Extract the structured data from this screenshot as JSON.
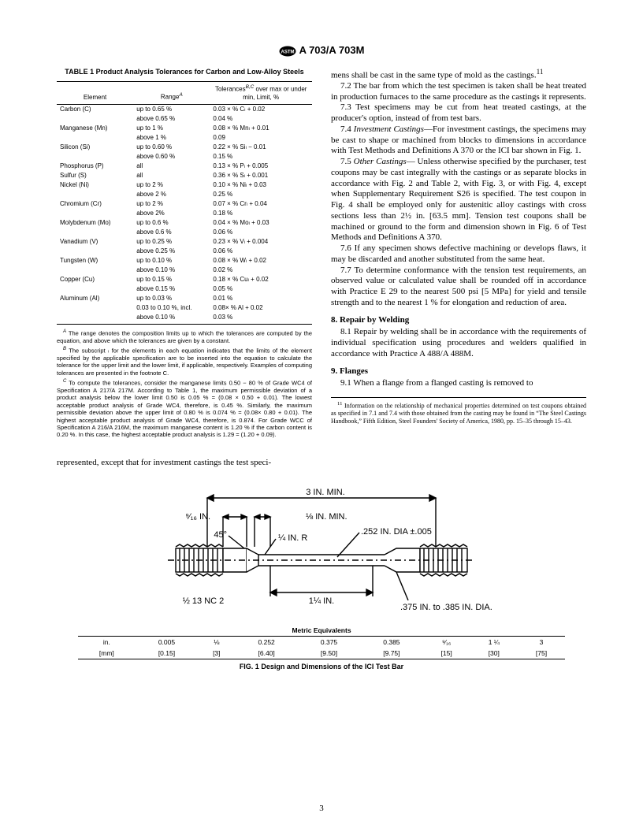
{
  "header": {
    "standard": "A 703/A 703M"
  },
  "table1": {
    "title": "TABLE 1   Product Analysis Tolerances for Carbon and Low-Alloy Steels",
    "columns": [
      "Element",
      "Range",
      "Tolerances",
      "over max or under min, Limit, %"
    ],
    "col_head_1": "Element",
    "col_head_2": "Range",
    "col_head_2_sup": "A",
    "col_head_3_line1": "Tolerances",
    "col_head_3_sup": "B,C",
    "col_head_3_line2": "over max or under min, Limit, %",
    "rows": [
      [
        "Carbon (C)",
        "up to 0.65 %",
        "0.03 × % Cₗ + 0.02"
      ],
      [
        "",
        "above 0.65 %",
        "0.04 %"
      ],
      [
        "Manganese (Mn)",
        "up to 1 %",
        "0.08 × % Mnₗ + 0.01"
      ],
      [
        "",
        "above 1 %",
        "0.09"
      ],
      [
        "Silicon (Si)",
        "up to 0.60 %",
        "0.22 × % Siₗ − 0.01"
      ],
      [
        "",
        "above 0.60 %",
        "0.15 %"
      ],
      [
        "Phosphorus (P)",
        "all",
        "0.13 × % Pₗ + 0.005"
      ],
      [
        "Sulfur (S)",
        "all",
        "0.36 × % Sₗ + 0.001"
      ],
      [
        "Nickel (Ni)",
        "up to 2 %",
        "0.10 × % Niₗ + 0.03"
      ],
      [
        "",
        "above 2 %",
        "0.25 %"
      ],
      [
        "Chromium (Cr)",
        "up to 2 %",
        "0.07 × % Crₗ + 0.04"
      ],
      [
        "",
        "above 2%",
        "0.18 %"
      ],
      [
        "Molybdenum (Mo)",
        "up to 0.6 %",
        "0.04 × % Moₗ + 0.03"
      ],
      [
        "",
        "above 0.6 %",
        "0.06 %"
      ],
      [
        "Vanadium (V)",
        "up to 0.25 %",
        "0.23 × % Vₗ + 0.004"
      ],
      [
        "",
        "above 0.25 %",
        "0.06 %"
      ],
      [
        "Tungsten (W)",
        "up to 0.10 %",
        "0.08 × % Wₗ + 0.02"
      ],
      [
        "",
        "above 0.10 %",
        "0.02 %"
      ],
      [
        "Copper (Cu)",
        "up to 0.15 %",
        "0.18 × % Cuₗ + 0.02"
      ],
      [
        "",
        "above 0.15 %",
        "0.05 %"
      ],
      [
        "Aluminum (Al)",
        "up to 0.03 %",
        "0.01 %"
      ],
      [
        "",
        "0.03 to 0.10 %, incl.",
        "0.08× % Al + 0.02"
      ],
      [
        "",
        "above 0.10 %",
        "0.03 %"
      ]
    ],
    "footnote_A": "The range denotes the composition limits up to which the tolerances are computed by the equation, and above which the tolerances are given by a constant.",
    "footnote_B": "The subscript ₗ for the elements in each equation indicates that the limits of the element specified by the applicable specification are to be inserted into the equation to calculate the tolerance for the upper limit and the lower limit, if applicable, respectively. Examples of computing tolerances are presented in the footnote C.",
    "footnote_C": "To compute the tolerances, consider the manganese limits 0.50 − 80 % of Grade WC4 of Specification A 217/A 217M. According to Table 1, the maximum permissible deviation of a product analysis below the lower limit 0.50 is 0.05 % = (0.08 × 0.50 + 0.01). The lowest acceptable product analysis of Grade WC4, therefore, is 0.45 %. Similarly, the maximum permissible deviation above the upper limit of 0.80 % is 0.074 % = (0.08× 0.80 + 0.01). The highest acceptable product analysis of Grade WC4, therefore, is 0.874. For Grade WCC of Specification A 216/A 216M, the maximum manganese content is 1.20 % if the carbon content is 0.20 %. In this case, the highest acceptable product analysis is 1.29 = (1.20 + 0.09)."
  },
  "left_tail": "represented, except that for investment castings the test speci-",
  "right_col": {
    "p71end": "mens shall be cast in the same type of mold as the castings.",
    "p72": "7.2  The bar from which the test specimen is taken shall be heat treated in production furnaces to the same procedure as the castings it represents.",
    "p73": "7.3  Test specimens may be cut from heat treated castings, at the producer's option, instead of from test bars.",
    "p74_label": "7.4 ",
    "p74_ital": "Investment Castings",
    "p74_rest": "—For investment castings, the specimens may be cast to shape or machined from blocks to dimensions in accordance with Test Methods and Definitions A 370 or the ICI bar shown in Fig. 1.",
    "p75_label": "7.5 ",
    "p75_ital": "Other Castings",
    "p75_rest": "— Unless otherwise specified by the purchaser, test coupons may be cast integrally with the castings or as separate blocks in accordance with Fig. 2 and Table 2, with Fig. 3, or with Fig. 4, except when Supplementary Requirement S26 is specified. The test coupon in Fig. 4 shall be employed only for austenitic alloy castings with cross sections less than 2½ in. [63.5 mm]. Tension test coupons shall be machined or ground to the form and dimension shown in Fig. 6 of Test Methods and Definitions A 370.",
    "p76": "7.6  If any specimen shows defective machining or develops flaws, it may be discarded and another substituted from the same heat.",
    "p77": "7.7  To determine conformance with the tension test requirements, an observed value or calculated value shall be rounded off in accordance with Practice E 29 to the nearest 500 psi [5 MPa] for yield and tensile strength and to the nearest 1 % for elongation and reduction of area.",
    "sec8": "8.  Repair by Welding",
    "p81": "8.1  Repair by welding shall be in accordance with the requirements of individual specification using procedures and welders qualified in accordance with Practice A 488/A 488M.",
    "sec9": "9.  Flanges",
    "p91": "9.1  When a flange from a flanged casting is removed to",
    "fn11": "Information on the relationship of mechanical properties determined on test coupons obtained as specified in 7.1 and 7.4 with those obtained from the casting may be found in “The Steel Castings Handbook,” Fifth Edition, Steel Founders' Society of America, 1980, pp. 15–35 through 15–43."
  },
  "figure": {
    "labels": {
      "three_in": "3 IN. MIN.",
      "nine16": "⁹⁄₁₆ IN.",
      "eighth_min": "⅛ IN. MIN.",
      "deg45": "45°",
      "quarter_r": "¼ IN. R",
      "dia252": ".252 IN. DIA ±.005",
      "thread": "½ 13 NC 2",
      "one_quarter": "1¼ IN.",
      "dia375": ".375 IN. to .385 IN. DIA."
    },
    "metric_title": "Metric Equivalents",
    "metric_rows": [
      [
        "in.",
        "0.005",
        "⅛",
        "0.252",
        "0.375",
        "0.385",
        "⁹⁄₁₆",
        "1 ¼",
        "3"
      ],
      [
        "[mm]",
        "[0.15]",
        "[3]",
        "[6.40]",
        "[9.50]",
        "[9.75]",
        "[15]",
        "[30]",
        "[75]"
      ]
    ],
    "caption": "FIG. 1 Design and Dimensions of the ICI Test Bar"
  },
  "pagenum": "3"
}
